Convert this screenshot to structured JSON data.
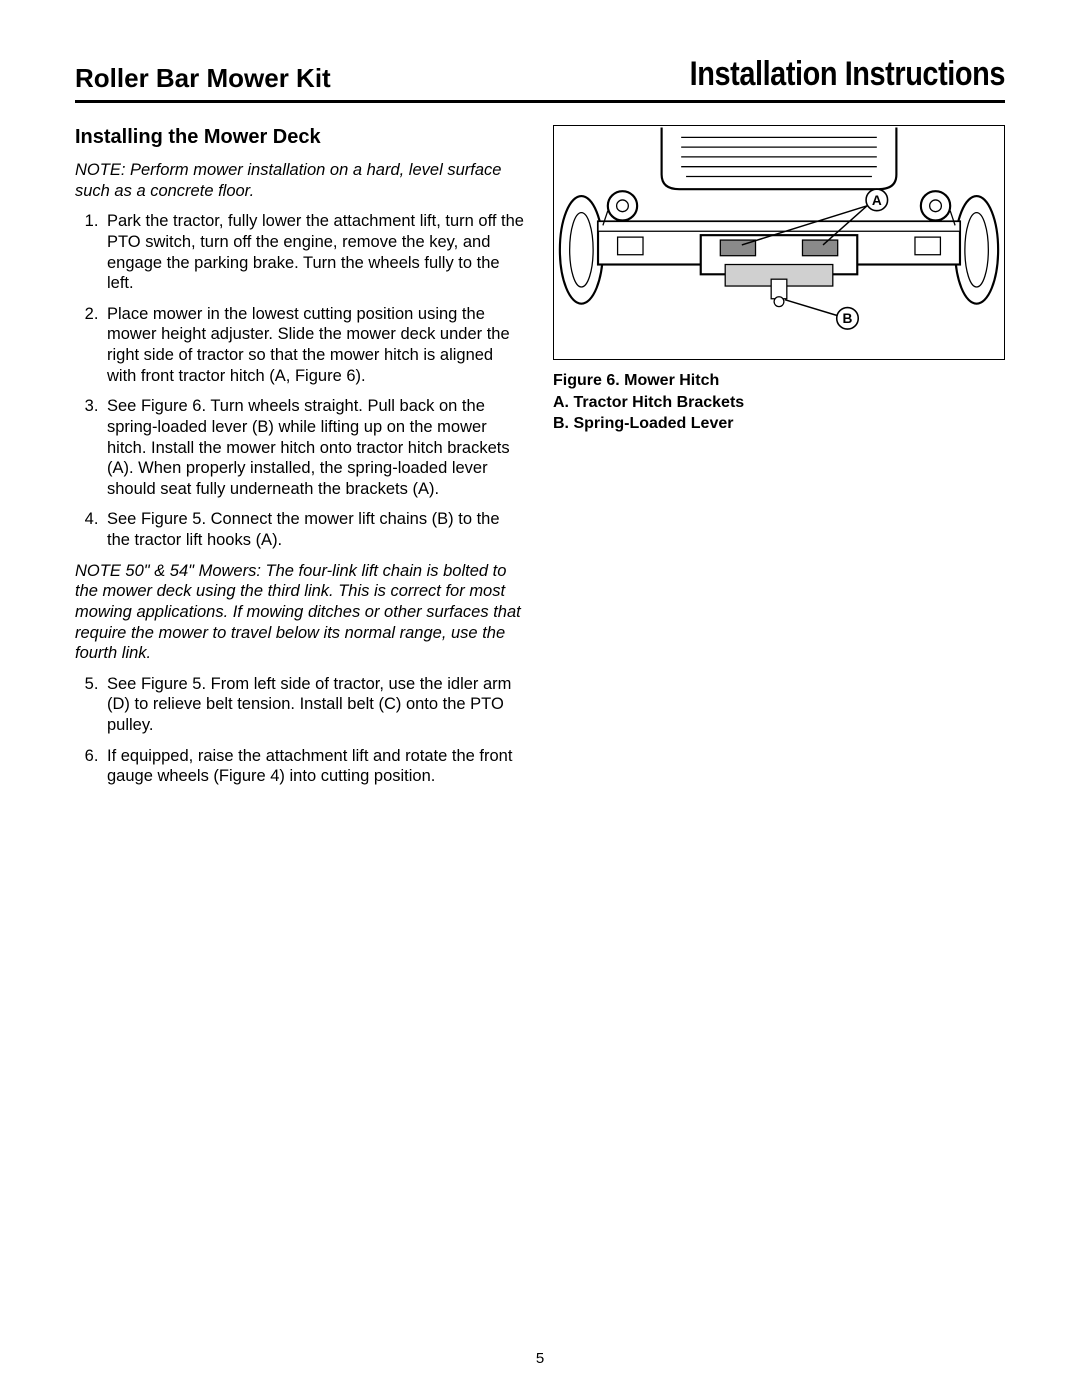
{
  "header": {
    "left": "Roller Bar Mower Kit",
    "right": "Installation Instructions"
  },
  "section_title": "Installing the Mower Deck",
  "note1": "NOTE: Perform mower installation on a hard, level  surface such as a concrete floor.",
  "steps_a": [
    "Park the tractor, fully lower the attachment lift, turn off the PTO switch, turn off the engine, remove the key, and engage the parking brake. Turn the wheels fully to the left.",
    "Place mower in the lowest cutting position using the mower height adjuster. Slide the mower deck under the right side of tractor so that the mower hitch is aligned with front tractor hitch (A, Figure 6).",
    "See Figure 6. Turn wheels straight.  Pull back on the spring-loaded lever (B) while lifting up on the mower hitch. Install the mower hitch onto tractor hitch brackets (A). When properly installed, the spring-loaded lever should seat fully underneath the brackets (A).",
    "See Figure 5. Connect the mower lift chains (B) to the the tractor lift hooks (A)."
  ],
  "note2": "NOTE 50\" & 54\" Mowers:  The four-link lift chain is bolted to the mower deck using the third link.  This is correct for most mowing applications.  If mowing ditches or other surfaces that require the mower to travel below its normal range, use the fourth link.",
  "steps_b": [
    "See Figure 5. From left side of tractor, use the idler arm (D) to relieve belt tension. Install belt (C) onto the PTO pulley.",
    "If equipped, raise the attachment lift and rotate the front gauge wheels (Figure 4) into cutting position."
  ],
  "figure": {
    "caption_title": "Figure 6. Mower Hitch",
    "caption_a": "A.  Tractor Hitch Brackets",
    "caption_b": "B.  Spring-Loaded Lever",
    "label_a": "A",
    "label_b": "B",
    "stroke": "#000000",
    "stroke_mid": "#4a4a4a",
    "fill_light": "#ffffff",
    "fill_grey": "#d0d0d0",
    "fill_dark": "#8a8a8a",
    "stroke_w_main": 2.2,
    "stroke_w_thin": 1.3
  },
  "page_number": "5"
}
